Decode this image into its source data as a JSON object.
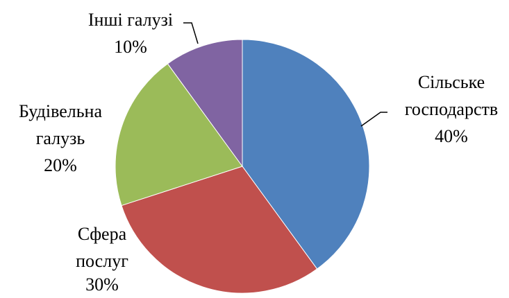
{
  "chart_data": {
    "type": "pie",
    "categories": [
      "Сільське господарств",
      "Сфера послуг",
      "Будівельна галузь",
      "Інші галузі"
    ],
    "values": [
      40,
      30,
      20,
      10
    ],
    "value_labels": [
      "40%",
      "30%",
      "20%",
      "10%"
    ],
    "colors": [
      "#4f81bd",
      "#c0504d",
      "#9bbb59",
      "#8064a2"
    ]
  }
}
